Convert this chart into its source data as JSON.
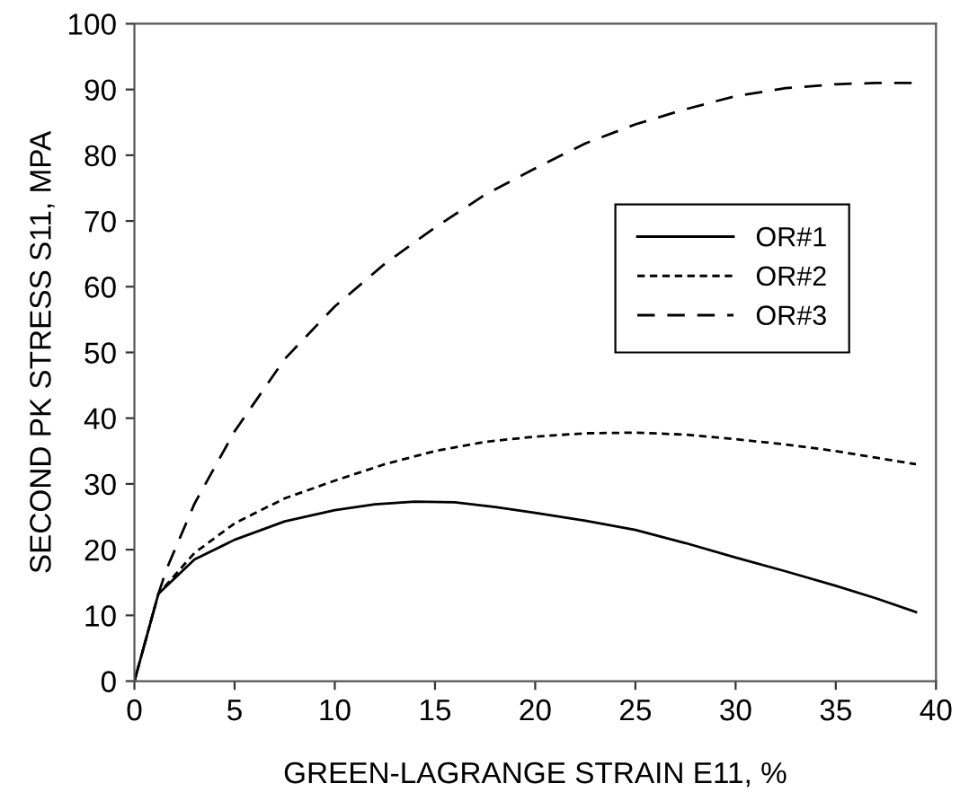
{
  "chart_data": {
    "type": "line",
    "xlabel": "GREEN-LAGRANGE STRAIN E11, %",
    "ylabel": "SECOND PK STRESS S11, MPA",
    "xlim": [
      0,
      40
    ],
    "ylim": [
      0,
      100
    ],
    "xticks": [
      0,
      5,
      10,
      15,
      20,
      25,
      30,
      35,
      40
    ],
    "yticks": [
      0,
      10,
      20,
      30,
      40,
      50,
      60,
      70,
      80,
      90,
      100
    ],
    "grid": false,
    "legend": "right",
    "marker": "none",
    "series": [
      {
        "name": "OR#1",
        "color": "#000000",
        "line_style": "solid",
        "x": [
          0,
          1.2,
          3,
          5,
          7.5,
          10,
          12,
          14,
          16,
          18,
          20,
          22.5,
          25,
          27.5,
          30,
          32.5,
          35,
          37,
          39
        ],
        "values": [
          0,
          13.3,
          18.5,
          21.5,
          24.3,
          26,
          26.9,
          27.3,
          27.2,
          26.5,
          25.6,
          24.4,
          23,
          21,
          18.8,
          16.7,
          14.5,
          12.6,
          10.5
        ]
      },
      {
        "name": "OR#2",
        "color": "#000000",
        "line_style": "dotted",
        "x": [
          0,
          1.2,
          3,
          5,
          7.5,
          10,
          12.5,
          15,
          17.5,
          20,
          22.5,
          25,
          27.5,
          30,
          32.5,
          35,
          37,
          39
        ],
        "values": [
          0,
          13.3,
          19.5,
          24,
          27.8,
          30.5,
          33,
          35,
          36.4,
          37.2,
          37.7,
          37.8,
          37.5,
          36.8,
          36,
          35,
          34,
          33
        ]
      },
      {
        "name": "OR#3",
        "color": "#000000",
        "line_style": "dashed",
        "x": [
          0,
          1.2,
          1.6,
          3,
          5,
          7.5,
          10,
          12.5,
          15,
          17.5,
          20,
          22.5,
          25,
          27.5,
          30,
          32.5,
          35,
          37,
          39
        ],
        "values": [
          0,
          13.3,
          17,
          27,
          38,
          49,
          57,
          63.5,
          69,
          74,
          78,
          81.8,
          84.7,
          87,
          89,
          90.2,
          90.8,
          91,
          91
        ]
      }
    ]
  }
}
